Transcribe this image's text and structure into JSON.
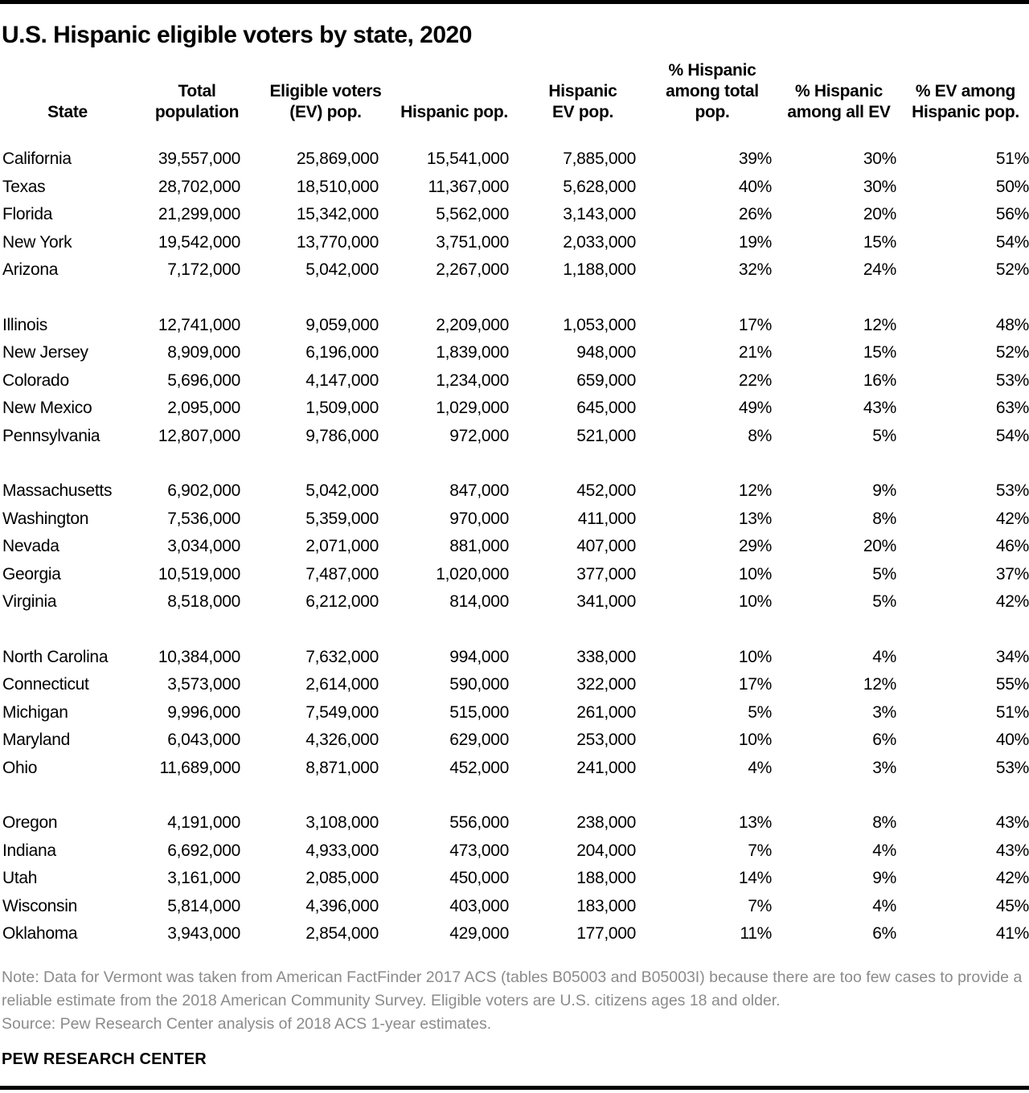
{
  "title": "U.S. Hispanic eligible voters by state, 2020",
  "note": "Note: Data for Vermont was taken from American FactFinder 2017 ACS (tables B05003 and B05003I) because there are too few cases to provide a reliable estimate from the 2018 American Community Survey. Eligible voters are U.S. citizens ages 18 and older.",
  "source": "Source: Pew Research Center analysis of 2018 ACS 1-year estimates.",
  "footer_brand": "PEW RESEARCH CENTER",
  "colors": {
    "text": "#000000",
    "muted_note_text": "#8b8b8b",
    "rule": "#000000",
    "background": "#ffffff"
  },
  "chart_data": {
    "type": "table",
    "title": "U.S. Hispanic eligible voters by state, 2020",
    "columns": [
      "State",
      "Total population",
      "Eligible voters (EV) pop.",
      "Hispanic pop.",
      "Hispanic EV pop.",
      "% Hispanic among total pop.",
      "% Hispanic among all EV",
      "% EV among Hispanic pop."
    ],
    "header_display": [
      "State",
      "Total\npopulation",
      "Eligible voters\n(EV) pop.",
      "Hispanic pop.",
      "Hispanic\nEV pop.",
      "% Hispanic\namong total\npop.",
      "% Hispanic\namong all EV",
      "% EV among\nHispanic pop."
    ],
    "row_groups": [
      [
        [
          "California",
          "39,557,000",
          "25,869,000",
          "15,541,000",
          "7,885,000",
          "39%",
          "30%",
          "51%"
        ],
        [
          "Texas",
          "28,702,000",
          "18,510,000",
          "11,367,000",
          "5,628,000",
          "40%",
          "30%",
          "50%"
        ],
        [
          "Florida",
          "21,299,000",
          "15,342,000",
          "5,562,000",
          "3,143,000",
          "26%",
          "20%",
          "56%"
        ],
        [
          "New York",
          "19,542,000",
          "13,770,000",
          "3,751,000",
          "2,033,000",
          "19%",
          "15%",
          "54%"
        ],
        [
          "Arizona",
          "7,172,000",
          "5,042,000",
          "2,267,000",
          "1,188,000",
          "32%",
          "24%",
          "52%"
        ]
      ],
      [
        [
          "Illinois",
          "12,741,000",
          "9,059,000",
          "2,209,000",
          "1,053,000",
          "17%",
          "12%",
          "48%"
        ],
        [
          "New Jersey",
          "8,909,000",
          "6,196,000",
          "1,839,000",
          "948,000",
          "21%",
          "15%",
          "52%"
        ],
        [
          "Colorado",
          "5,696,000",
          "4,147,000",
          "1,234,000",
          "659,000",
          "22%",
          "16%",
          "53%"
        ],
        [
          "New Mexico",
          "2,095,000",
          "1,509,000",
          "1,029,000",
          "645,000",
          "49%",
          "43%",
          "63%"
        ],
        [
          "Pennsylvania",
          "12,807,000",
          "9,786,000",
          "972,000",
          "521,000",
          "8%",
          "5%",
          "54%"
        ]
      ],
      [
        [
          "Massachusetts",
          "6,902,000",
          "5,042,000",
          "847,000",
          "452,000",
          "12%",
          "9%",
          "53%"
        ],
        [
          "Washington",
          "7,536,000",
          "5,359,000",
          "970,000",
          "411,000",
          "13%",
          "8%",
          "42%"
        ],
        [
          "Nevada",
          "3,034,000",
          "2,071,000",
          "881,000",
          "407,000",
          "29%",
          "20%",
          "46%"
        ],
        [
          "Georgia",
          "10,519,000",
          "7,487,000",
          "1,020,000",
          "377,000",
          "10%",
          "5%",
          "37%"
        ],
        [
          "Virginia",
          "8,518,000",
          "6,212,000",
          "814,000",
          "341,000",
          "10%",
          "5%",
          "42%"
        ]
      ],
      [
        [
          "North Carolina",
          "10,384,000",
          "7,632,000",
          "994,000",
          "338,000",
          "10%",
          "4%",
          "34%"
        ],
        [
          "Connecticut",
          "3,573,000",
          "2,614,000",
          "590,000",
          "322,000",
          "17%",
          "12%",
          "55%"
        ],
        [
          "Michigan",
          "9,996,000",
          "7,549,000",
          "515,000",
          "261,000",
          "5%",
          "3%",
          "51%"
        ],
        [
          "Maryland",
          "6,043,000",
          "4,326,000",
          "629,000",
          "253,000",
          "10%",
          "6%",
          "40%"
        ],
        [
          "Ohio",
          "11,689,000",
          "8,871,000",
          "452,000",
          "241,000",
          "4%",
          "3%",
          "53%"
        ]
      ],
      [
        [
          "Oregon",
          "4,191,000",
          "3,108,000",
          "556,000",
          "238,000",
          "13%",
          "8%",
          "43%"
        ],
        [
          "Indiana",
          "6,692,000",
          "4,933,000",
          "473,000",
          "204,000",
          "7%",
          "4%",
          "43%"
        ],
        [
          "Utah",
          "3,161,000",
          "2,085,000",
          "450,000",
          "188,000",
          "14%",
          "9%",
          "42%"
        ],
        [
          "Wisconsin",
          "5,814,000",
          "4,396,000",
          "403,000",
          "183,000",
          "7%",
          "4%",
          "45%"
        ],
        [
          "Oklahoma",
          "3,943,000",
          "2,854,000",
          "429,000",
          "177,000",
          "11%",
          "6%",
          "41%"
        ]
      ]
    ]
  }
}
